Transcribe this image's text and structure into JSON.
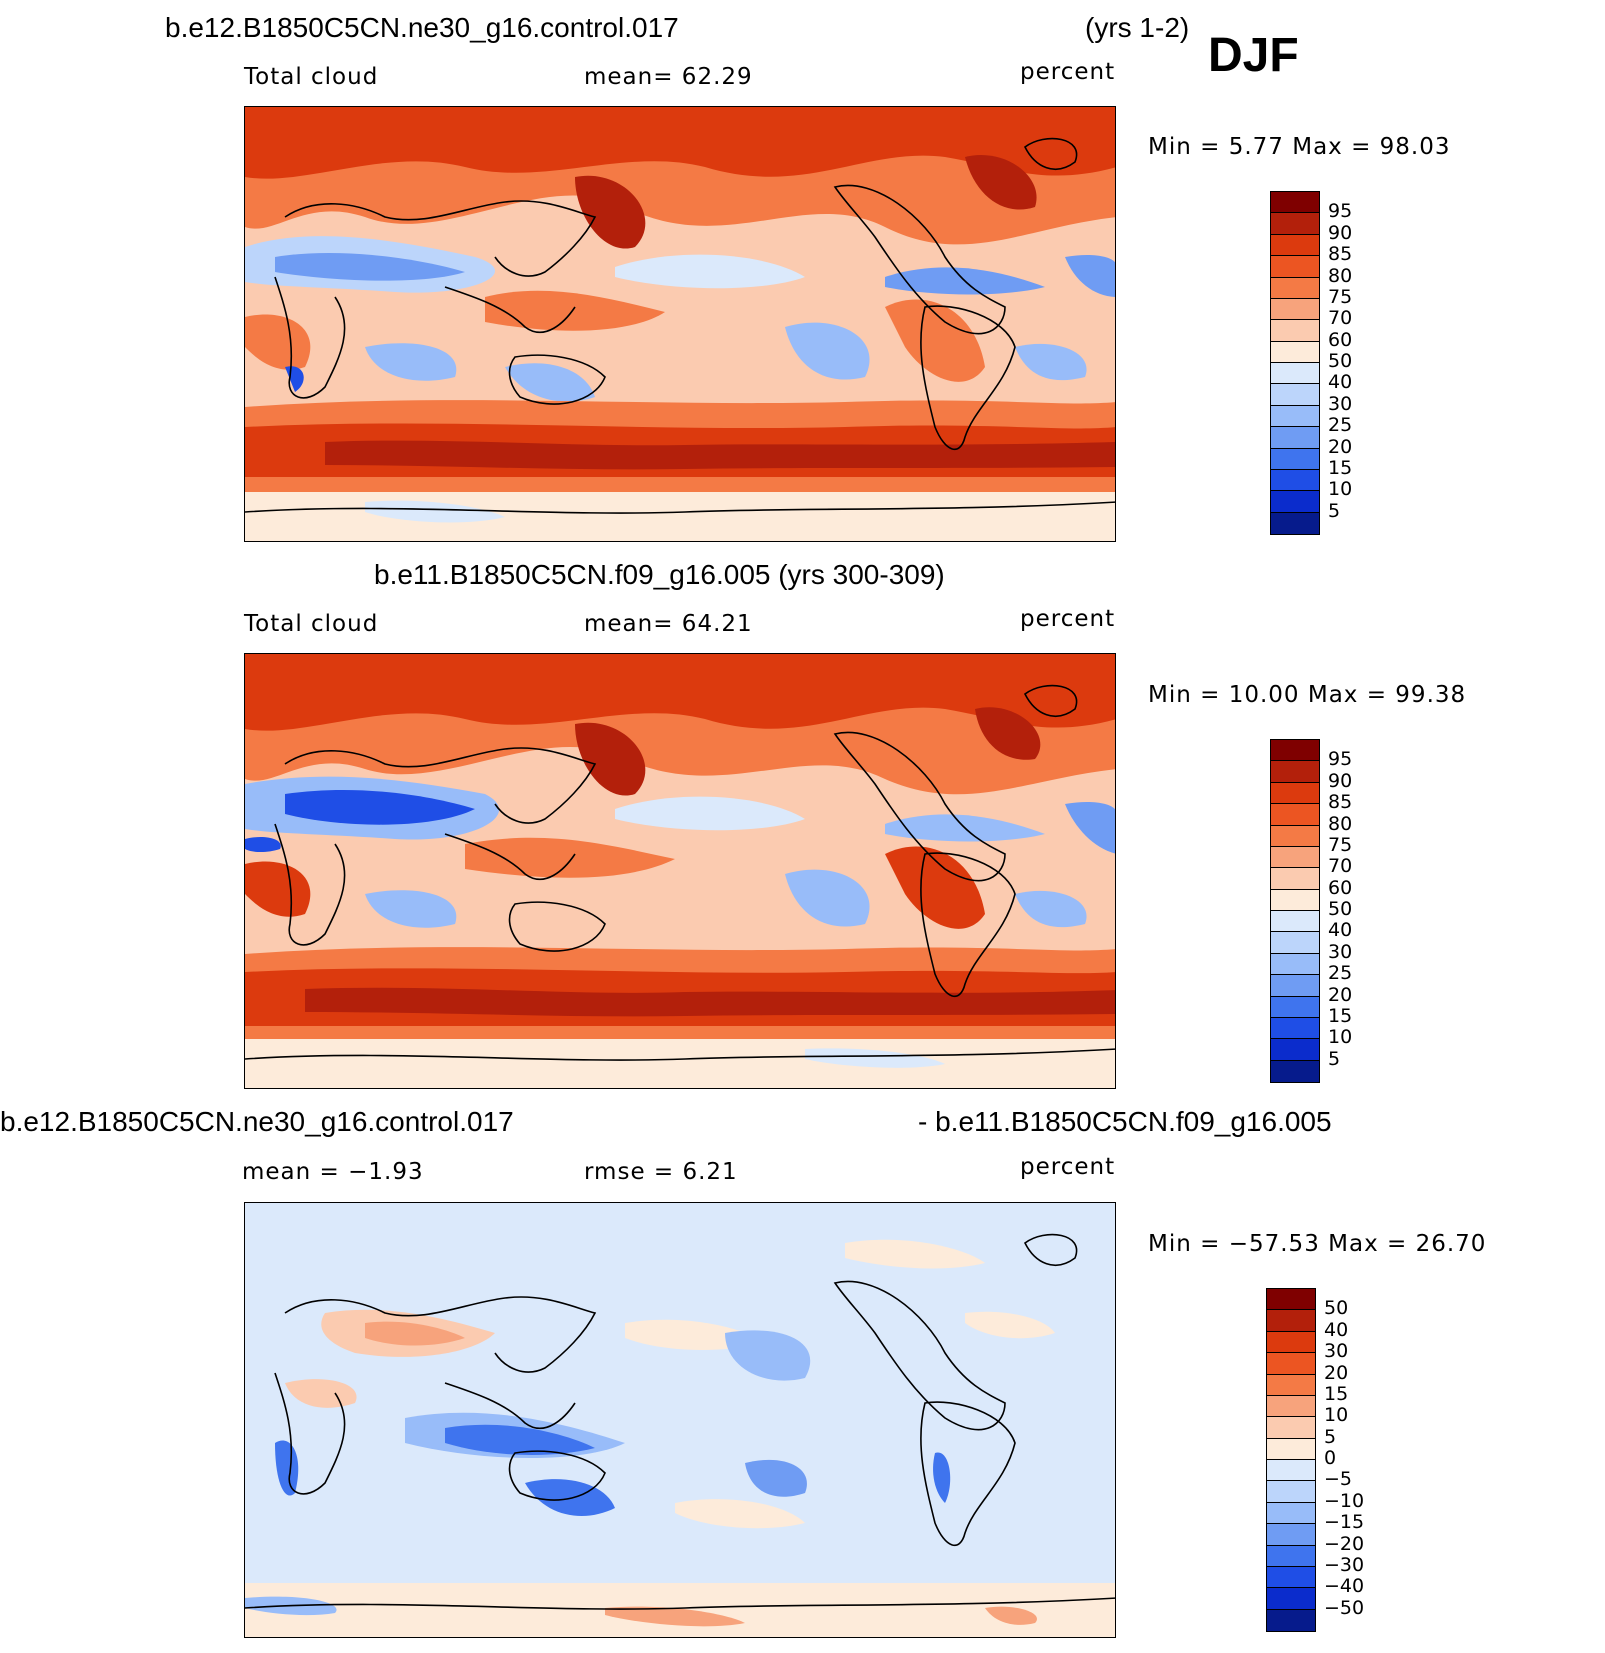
{
  "season": "DJF",
  "panels": [
    {
      "title_left": "b.e12.B1850C5CN.ne30_g16.control.017",
      "title_right": "(yrs 1-2)",
      "variable": "Total cloud",
      "stat_text": "mean=   62.29",
      "units": "percent",
      "minmax": "Min =     5.77  Max =    98.03",
      "colorbar": {
        "labels": [
          "95",
          "90",
          "85",
          "80",
          "75",
          "70",
          "60",
          "50",
          "40",
          "30",
          "25",
          "20",
          "15",
          "10",
          "5"
        ],
        "colors": [
          "#7f0000",
          "#b3200b",
          "#dc3a0e",
          "#ec5522",
          "#f47a45",
          "#f7a37c",
          "#fbcbb0",
          "#fdebda",
          "#dbe9fb",
          "#bcd5fb",
          "#98bcf9",
          "#6f9cf3",
          "#3f74ee",
          "#1f4ee6",
          "#0b2ccc",
          "#061b8c"
        ]
      }
    },
    {
      "title_left": "b.e11.B1850C5CN.f09_g16.005 (yrs 300-309)",
      "title_right": "",
      "variable": "Total cloud",
      "stat_text": "mean=   64.21",
      "units": "percent",
      "minmax": "Min =   10.00  Max =    99.38",
      "colorbar": {
        "labels": [
          "95",
          "90",
          "85",
          "80",
          "75",
          "70",
          "60",
          "50",
          "40",
          "30",
          "25",
          "20",
          "15",
          "10",
          "5"
        ],
        "colors": [
          "#7f0000",
          "#b3200b",
          "#dc3a0e",
          "#ec5522",
          "#f47a45",
          "#f7a37c",
          "#fbcbb0",
          "#fdebda",
          "#dbe9fb",
          "#bcd5fb",
          "#98bcf9",
          "#6f9cf3",
          "#3f74ee",
          "#1f4ee6",
          "#0b2ccc",
          "#061b8c"
        ]
      }
    },
    {
      "title_left": "b.e12.B1850C5CN.ne30_g16.control.017",
      "title_right": "- b.e11.B1850C5CN.f09_g16.005",
      "variable": "mean =   −1.93",
      "stat_text": "rmse =    6.21",
      "units": "percent",
      "minmax": "Min = −57.53  Max =    26.70",
      "colorbar": {
        "labels": [
          "50",
          "40",
          "30",
          "20",
          "15",
          "10",
          "5",
          "0",
          "−5",
          "−10",
          "−15",
          "−20",
          "−30",
          "−40",
          "−50"
        ],
        "colors": [
          "#7f0000",
          "#b3200b",
          "#dc3a0e",
          "#ec5522",
          "#f47a45",
          "#f7a37c",
          "#fbcbb0",
          "#fdebda",
          "#dbe9fb",
          "#bcd5fb",
          "#98bcf9",
          "#6f9cf3",
          "#3f74ee",
          "#1f4ee6",
          "#0b2ccc",
          "#061b8c"
        ]
      }
    }
  ],
  "map_palette": {
    "top": {
      "deep": "#b3200b",
      "high": "#dc3a0e",
      "mid": "#f47a45",
      "low": "#fbcbb0",
      "pale": "#fdebda",
      "blue1": "#bcd5fb",
      "blue2": "#6f9cf3",
      "blue3": "#1f4ee6"
    },
    "diff": {
      "base": "#dbe9fb",
      "pale": "#fdebda",
      "warm": "#f7a37c",
      "cool": "#98bcf9",
      "cool2": "#3f74ee"
    }
  }
}
